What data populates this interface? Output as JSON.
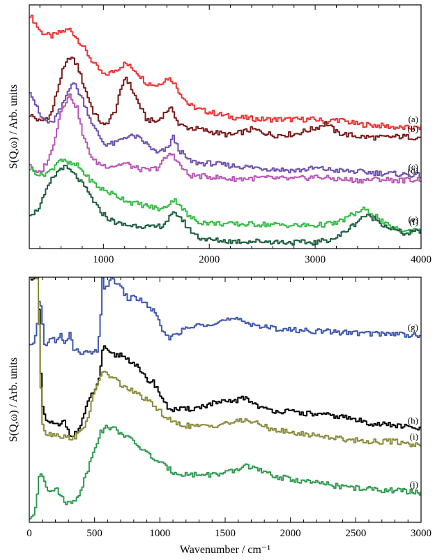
{
  "chart_data": [
    {
      "type": "line",
      "panel": "top",
      "xlabel": "",
      "ylabel": "S(Q,ω) / Arb. units",
      "xlim": [
        300,
        4000
      ],
      "ylim": [
        0,
        10
      ],
      "xticks": [
        1000,
        2000,
        3000,
        4000
      ],
      "grid": false,
      "legend": "none",
      "series": [
        {
          "name": "(a)",
          "color": "#ee3333",
          "x": [
            300,
            400,
            500,
            600,
            680,
            800,
            900,
            1000,
            1100,
            1200,
            1300,
            1400,
            1500,
            1600,
            1650,
            1700,
            1800,
            1900,
            2000,
            2200,
            2500,
            2800,
            3000,
            3100,
            3200,
            3400,
            3600,
            3800,
            4000
          ],
          "y": [
            9.6,
            8.9,
            8.7,
            8.9,
            9.0,
            8.3,
            7.6,
            7.1,
            7.3,
            7.6,
            7.3,
            6.8,
            6.7,
            7.0,
            6.9,
            6.5,
            5.9,
            5.7,
            5.6,
            5.4,
            5.3,
            5.3,
            5.3,
            5.2,
            5.3,
            5.1,
            5.05,
            4.95,
            4.95
          ]
        },
        {
          "name": "(b)",
          "color": "#7a1818",
          "x": [
            300,
            400,
            500,
            600,
            680,
            750,
            800,
            900,
            1000,
            1100,
            1200,
            1300,
            1400,
            1500,
            1600,
            1650,
            1700,
            1800,
            1900,
            2000,
            2200,
            2400,
            2600,
            2800,
            3000,
            3100,
            3200,
            3400,
            3600,
            3800,
            4000
          ],
          "y": [
            5.5,
            5.2,
            5.5,
            7.2,
            7.9,
            7.5,
            6.8,
            5.6,
            5.0,
            5.6,
            7.1,
            6.2,
            5.3,
            5.2,
            5.7,
            5.7,
            5.1,
            4.95,
            4.9,
            4.8,
            4.65,
            4.9,
            4.65,
            4.7,
            4.95,
            5.15,
            4.75,
            4.6,
            4.55,
            4.6,
            4.55
          ]
        },
        {
          "name": "(c)",
          "color": "#6e4fb0",
          "x": [
            300,
            400,
            500,
            600,
            700,
            800,
            900,
            1000,
            1100,
            1200,
            1300,
            1400,
            1500,
            1600,
            1650,
            1700,
            1800,
            1900,
            2000,
            2200,
            2500,
            2800,
            3000,
            3200,
            3400,
            3600,
            3800,
            4000
          ],
          "y": [
            6.5,
            5.4,
            5.1,
            5.8,
            6.9,
            6.1,
            5.0,
            4.3,
            4.3,
            4.6,
            4.6,
            4.3,
            3.9,
            4.1,
            4.6,
            4.1,
            3.6,
            3.5,
            3.5,
            3.4,
            3.3,
            3.2,
            3.3,
            3.2,
            3.15,
            3.1,
            3.05,
            3.0
          ]
        },
        {
          "name": "(d)",
          "color": "#b855b8",
          "x": [
            300,
            350,
            400,
            500,
            600,
            680,
            750,
            800,
            900,
            1000,
            1100,
            1200,
            1300,
            1400,
            1500,
            1600,
            1650,
            1700,
            1800,
            2000,
            2200,
            2500,
            2800,
            3000,
            3200,
            3400,
            3600,
            3800,
            4000
          ],
          "y": [
            3.5,
            3.1,
            3.1,
            3.9,
            5.8,
            6.3,
            5.7,
            4.6,
            3.6,
            3.4,
            3.4,
            3.5,
            3.3,
            3.2,
            3.3,
            3.8,
            3.9,
            3.5,
            3.0,
            2.95,
            2.85,
            2.9,
            2.85,
            2.95,
            2.85,
            2.8,
            2.85,
            2.8,
            2.85
          ]
        },
        {
          "name": "(e)",
          "color": "#33bb44",
          "x": [
            300,
            400,
            500,
            580,
            650,
            750,
            850,
            950,
            1050,
            1150,
            1250,
            1350,
            1450,
            1550,
            1650,
            1700,
            1800,
            1900,
            2000,
            2200,
            2500,
            2800,
            3000,
            3200,
            3350,
            3450,
            3550,
            3650,
            3750,
            3850,
            4000
          ],
          "y": [
            3.3,
            3.0,
            3.2,
            3.7,
            3.5,
            3.4,
            2.9,
            2.5,
            2.3,
            2.1,
            1.9,
            1.8,
            1.7,
            1.6,
            2.0,
            1.9,
            1.3,
            1.1,
            1.05,
            1.0,
            1.0,
            0.95,
            0.95,
            1.05,
            1.4,
            1.6,
            1.4,
            1.0,
            0.8,
            0.7,
            0.85
          ]
        },
        {
          "name": "(f)",
          "color": "#1a5c3c",
          "x": [
            300,
            350,
            400,
            500,
            600,
            650,
            750,
            850,
            950,
            1050,
            1150,
            1250,
            1350,
            1450,
            1550,
            1650,
            1700,
            1800,
            1900,
            2000,
            2200,
            2500,
            2800,
            3000,
            3200,
            3350,
            3450,
            3550,
            3650,
            3750,
            3850,
            4000
          ],
          "y": [
            1.45,
            1.5,
            1.8,
            2.8,
            3.35,
            3.3,
            2.9,
            2.3,
            1.6,
            1.2,
            1.0,
            0.95,
            0.95,
            0.85,
            0.95,
            1.4,
            1.4,
            0.8,
            0.45,
            0.35,
            0.3,
            0.3,
            0.25,
            0.25,
            0.45,
            0.95,
            1.35,
            1.25,
            0.95,
            0.75,
            0.6,
            0.75
          ]
        }
      ]
    },
    {
      "type": "line",
      "panel": "bottom",
      "xlabel": "Wavenumber / cm⁻¹",
      "ylabel": "S(Q,ω) / Arb. units",
      "xlim": [
        0,
        3000
      ],
      "ylim": [
        0,
        10
      ],
      "xticks": [
        0,
        500,
        1000,
        1500,
        2000,
        2500,
        3000
      ],
      "grid": false,
      "legend": "none",
      "series": [
        {
          "name": "(g)",
          "color": "#3d56b0",
          "x": [
            30,
            50,
            70,
            90,
            110,
            130,
            150,
            175,
            200,
            220,
            240,
            260,
            290,
            310,
            330,
            380,
            450,
            520,
            540,
            555,
            570,
            600,
            630,
            660,
            700,
            750,
            800,
            850,
            900,
            950,
            1000,
            1050,
            1100,
            1200,
            1300,
            1400,
            1500,
            1600,
            1700,
            1800,
            1900,
            2000,
            2200,
            2400,
            2600,
            2800,
            3000
          ],
          "y": [
            7.2,
            7.8,
            9.1,
            8.6,
            7.2,
            7.35,
            7.4,
            7.5,
            7.35,
            7.45,
            7.7,
            7.3,
            7.4,
            7.9,
            7.0,
            6.95,
            6.9,
            6.95,
            8.3,
            9.95,
            9.6,
            9.7,
            9.95,
            9.8,
            9.55,
            9.1,
            9.2,
            9.05,
            8.85,
            8.6,
            8.0,
            7.5,
            7.65,
            7.9,
            8.05,
            8.15,
            8.25,
            8.25,
            8.1,
            7.95,
            7.9,
            7.85,
            7.8,
            7.75,
            7.7,
            7.7,
            7.6
          ]
        },
        {
          "name": "(h)",
          "color": "#000000",
          "x": [
            60,
            70,
            80,
            90,
            100,
            120,
            150,
            200,
            240,
            260,
            300,
            340,
            380,
            420,
            470,
            520,
            540,
            550,
            570,
            600,
            650,
            700,
            750,
            800,
            850,
            900,
            950,
            1000,
            1050,
            1100,
            1200,
            1300,
            1400,
            1500,
            1600,
            1650,
            1700,
            1800,
            1900,
            2000,
            2200,
            2400,
            2600,
            2800,
            3000
          ],
          "y": [
            10.0,
            8.5,
            6.5,
            5.2,
            4.5,
            4.15,
            4.1,
            3.95,
            3.95,
            4.2,
            3.65,
            3.55,
            3.85,
            4.5,
            5.2,
            5.6,
            6.3,
            7.0,
            7.1,
            6.9,
            6.8,
            6.85,
            6.65,
            6.5,
            6.1,
            5.8,
            5.7,
            5.2,
            4.7,
            4.6,
            4.6,
            4.7,
            4.85,
            4.9,
            5.0,
            5.1,
            4.9,
            4.6,
            4.55,
            4.5,
            4.4,
            4.3,
            4.05,
            3.95,
            3.8
          ]
        },
        {
          "name": "(i)",
          "color": "#8a8a3a",
          "x": [
            60,
            70,
            80,
            90,
            100,
            120,
            150,
            200,
            250,
            300,
            350,
            400,
            450,
            500,
            550,
            600,
            650,
            700,
            750,
            800,
            850,
            900,
            950,
            1000,
            1050,
            1100,
            1200,
            1300,
            1400,
            1500,
            1600,
            1650,
            1700,
            1800,
            1900,
            2000,
            2200,
            2400,
            2600,
            2800,
            2900,
            3000
          ],
          "y": [
            10.0,
            8.0,
            6.0,
            4.6,
            3.9,
            3.65,
            3.6,
            3.6,
            3.5,
            3.45,
            3.5,
            3.75,
            4.4,
            5.4,
            6.15,
            6.0,
            5.85,
            5.6,
            5.45,
            5.3,
            5.15,
            4.95,
            4.75,
            4.5,
            4.25,
            4.05,
            3.95,
            3.9,
            3.95,
            4.05,
            4.1,
            4.2,
            4.1,
            3.9,
            3.75,
            3.65,
            3.55,
            3.4,
            3.3,
            3.3,
            3.2,
            3.15
          ]
        },
        {
          "name": "(j)",
          "color": "#2e9a4e",
          "x": [
            30,
            50,
            70,
            90,
            110,
            140,
            170,
            200,
            230,
            270,
            320,
            380,
            440,
            500,
            550,
            600,
            650,
            700,
            800,
            900,
            1000,
            1100,
            1200,
            1300,
            1400,
            1500,
            1600,
            1650,
            1700,
            1800,
            1900,
            2000,
            2200,
            2400,
            2600,
            2800,
            3000
          ],
          "y": [
            0.2,
            0.9,
            1.9,
            2.1,
            1.7,
            1.35,
            1.35,
            1.35,
            1.15,
            0.85,
            0.75,
            1.2,
            2.1,
            3.15,
            3.75,
            3.9,
            3.8,
            3.65,
            3.25,
            2.8,
            2.4,
            2.05,
            1.95,
            1.95,
            1.95,
            2.0,
            2.15,
            2.35,
            2.25,
            2.0,
            1.85,
            1.75,
            1.6,
            1.45,
            1.35,
            1.3,
            1.2
          ]
        }
      ]
    }
  ]
}
